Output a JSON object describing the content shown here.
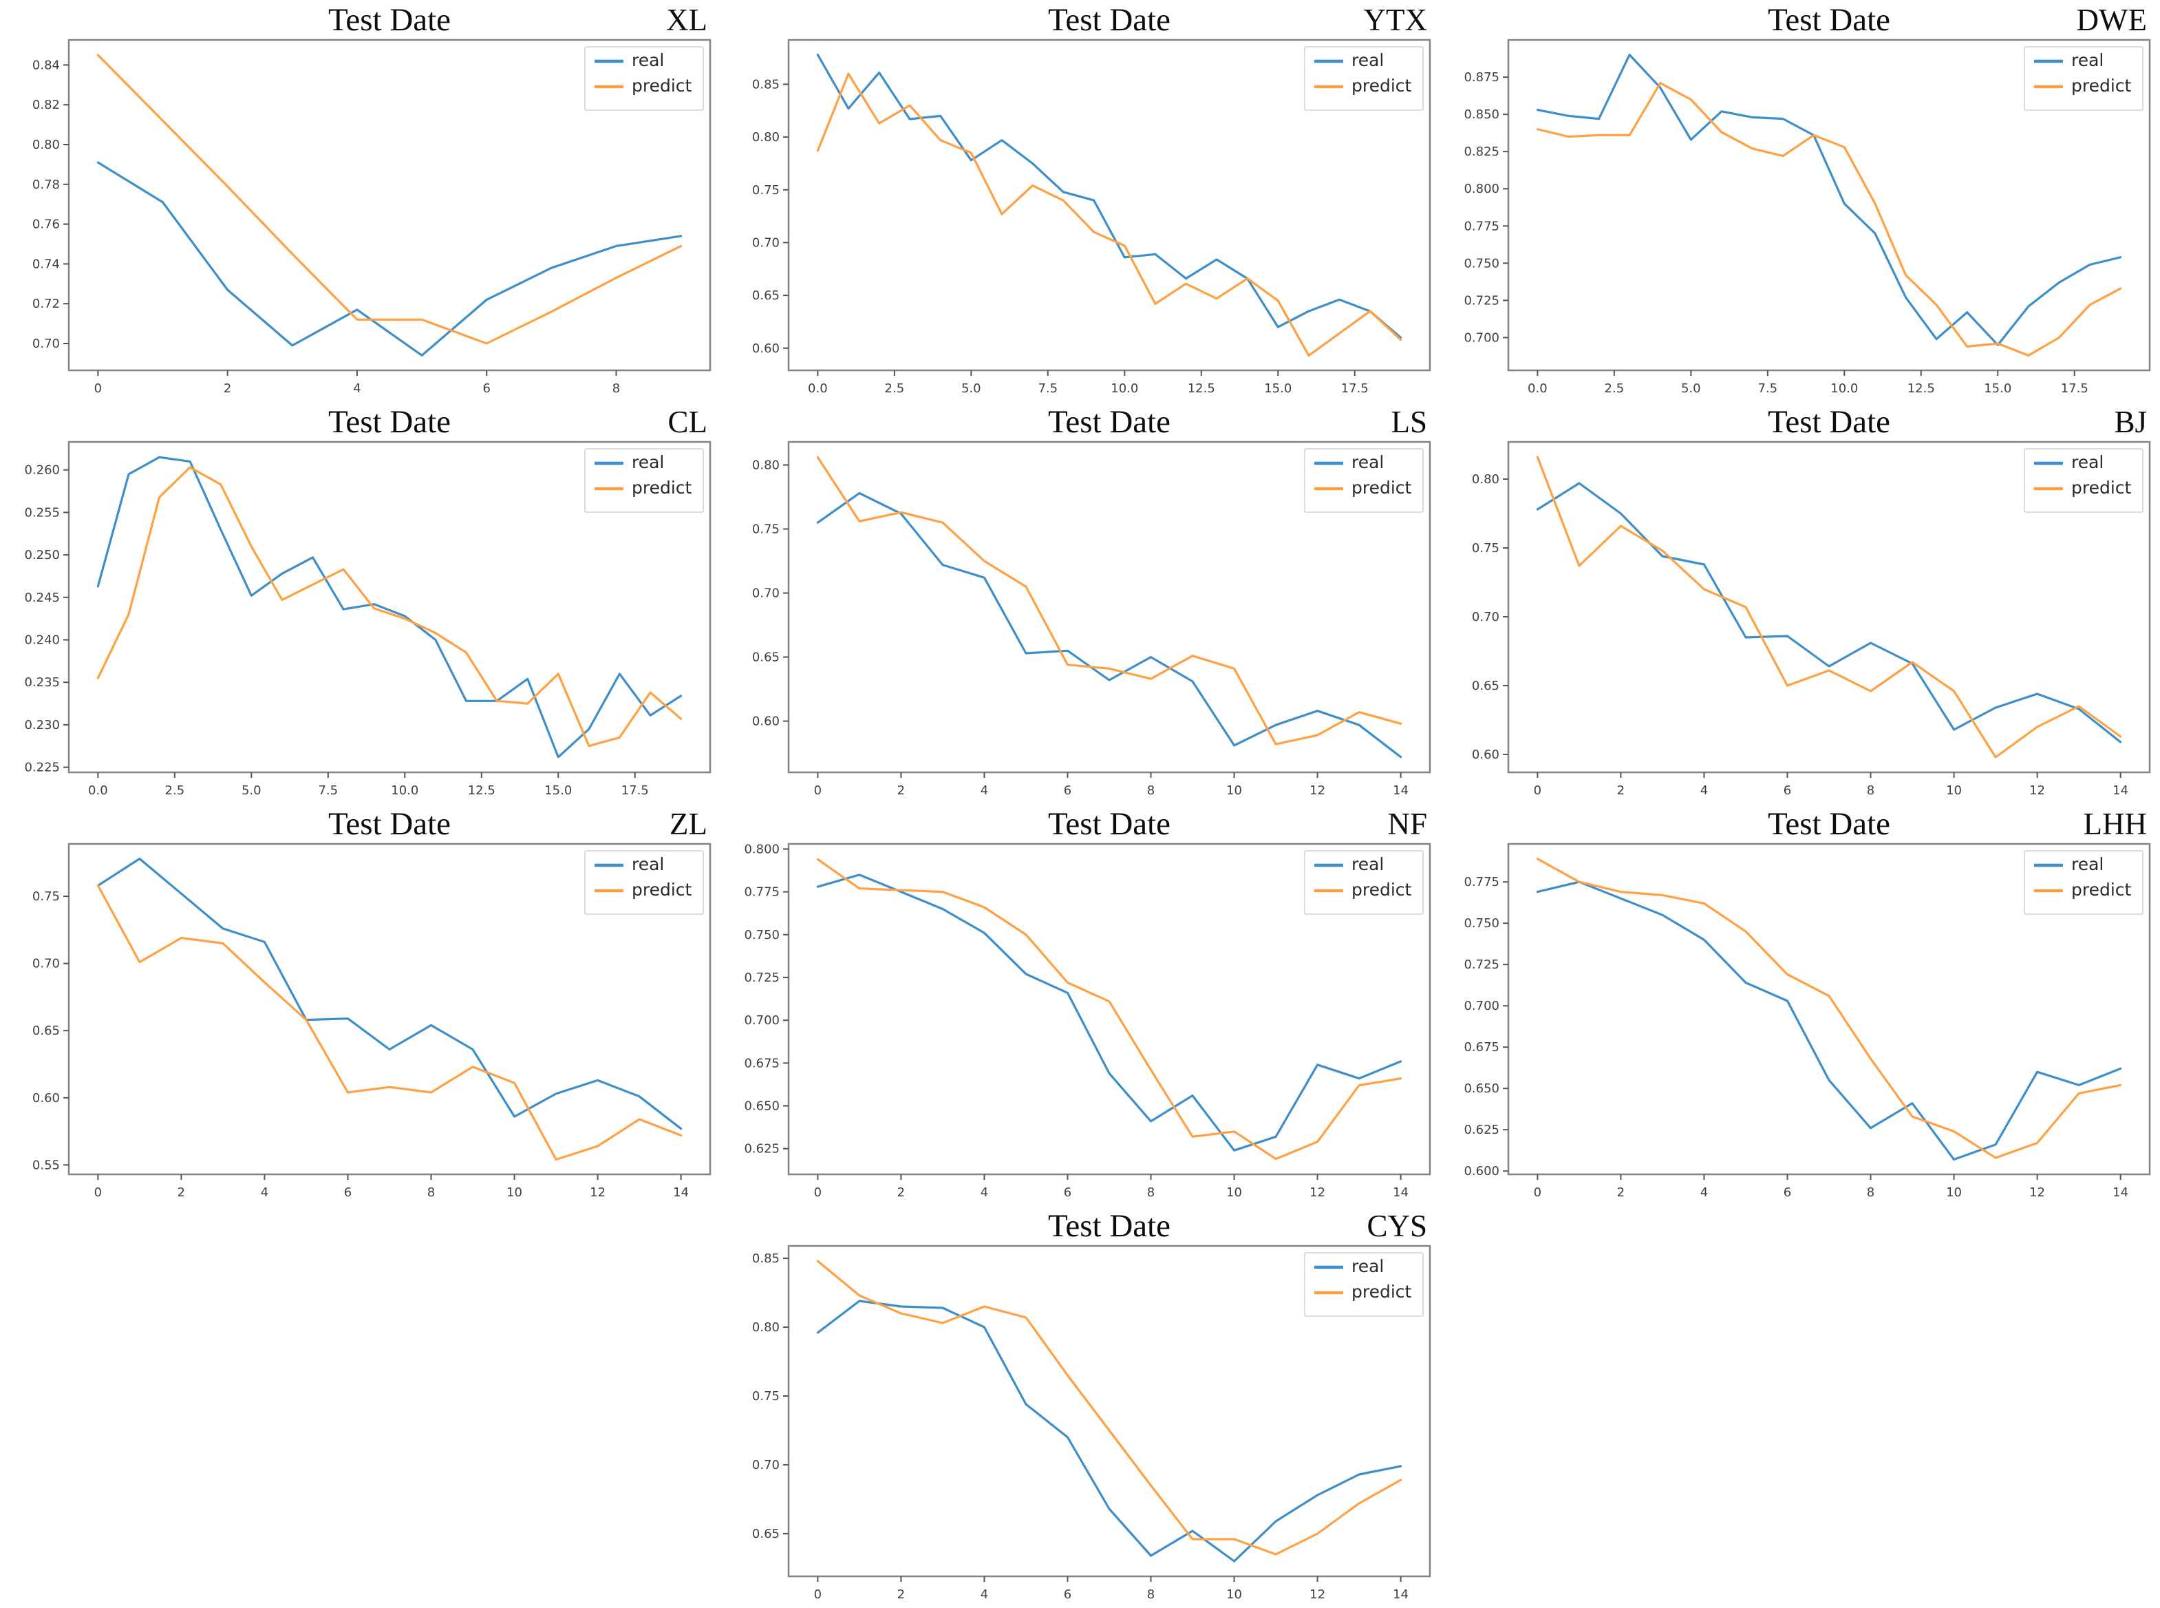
{
  "page": {
    "background": "#ffffff"
  },
  "legend": {
    "position": "top-right",
    "real_label": "real",
    "predict_label": "predict"
  },
  "colors": {
    "real_line": "#3d8ec9",
    "predict_line": "#ffa143",
    "spine": "#85847c",
    "tick": "#555555",
    "tick_label": "#3f3f3f",
    "title": "#0d0d0d",
    "legend_border": "#d2d2d2",
    "legend_bg": "#ffffff"
  },
  "chart_data": [
    {
      "type": "line",
      "title": "Test Date",
      "code": "XL",
      "x": [
        0,
        1,
        2,
        3,
        4,
        5,
        6,
        7,
        8,
        9
      ],
      "x_ticks": [
        "0",
        "2",
        "4",
        "6",
        "8"
      ],
      "y_ticks": [
        "0.70",
        "0.72",
        "0.74",
        "0.76",
        "0.78",
        "0.80",
        "0.82",
        "0.84"
      ],
      "ylim": [
        0.6865,
        0.8526
      ],
      "grid": false,
      "series": [
        {
          "name": "real",
          "values": [
            0.791,
            0.771,
            0.727,
            0.699,
            0.717,
            0.694,
            0.722,
            0.738,
            0.749,
            0.754
          ]
        },
        {
          "name": "predict",
          "values": [
            0.845,
            0.812,
            0.779,
            0.745,
            0.712,
            0.712,
            0.7,
            0.716,
            0.733,
            0.749
          ]
        }
      ]
    },
    {
      "type": "line",
      "title": "Test Date",
      "code": "YTX",
      "x": [
        0,
        1,
        2,
        3,
        4,
        5,
        6,
        7,
        8,
        9,
        10,
        11,
        12,
        13,
        14,
        15,
        16,
        17,
        18,
        19
      ],
      "x_ticks": [
        "0.0",
        "2.5",
        "5.0",
        "7.5",
        "10.0",
        "12.5",
        "15.0",
        "17.5"
      ],
      "y_ticks": [
        "0.60",
        "0.65",
        "0.70",
        "0.75",
        "0.80",
        "0.85"
      ],
      "ylim": [
        0.579,
        0.892
      ],
      "grid": false,
      "series": [
        {
          "name": "real",
          "values": [
            0.878,
            0.827,
            0.861,
            0.817,
            0.82,
            0.778,
            0.797,
            0.775,
            0.748,
            0.74,
            0.686,
            0.689,
            0.666,
            0.684,
            0.666,
            0.62,
            0.635,
            0.646,
            0.635,
            0.61
          ]
        },
        {
          "name": "predict",
          "values": [
            0.787,
            0.86,
            0.813,
            0.83,
            0.797,
            0.785,
            0.727,
            0.754,
            0.74,
            0.71,
            0.697,
            0.642,
            0.661,
            0.647,
            0.666,
            0.645,
            0.593,
            0.614,
            0.635,
            0.608
          ]
        }
      ]
    },
    {
      "type": "line",
      "title": "Test Date",
      "code": "DWE",
      "x": [
        0,
        1,
        2,
        3,
        4,
        5,
        6,
        7,
        8,
        9,
        10,
        11,
        12,
        13,
        14,
        15,
        16,
        17,
        18,
        19
      ],
      "x_ticks": [
        "0.0",
        "2.5",
        "5.0",
        "7.5",
        "10.0",
        "12.5",
        "15.0",
        "17.5"
      ],
      "y_ticks": [
        "0.700",
        "0.725",
        "0.750",
        "0.775",
        "0.800",
        "0.825",
        "0.850",
        "0.875"
      ],
      "ylim": [
        0.678,
        0.9
      ],
      "grid": false,
      "series": [
        {
          "name": "real",
          "values": [
            0.853,
            0.849,
            0.847,
            0.89,
            0.868,
            0.833,
            0.852,
            0.848,
            0.847,
            0.836,
            0.79,
            0.77,
            0.727,
            0.699,
            0.717,
            0.695,
            0.721,
            0.737,
            0.749,
            0.754
          ]
        },
        {
          "name": "predict",
          "values": [
            0.84,
            0.835,
            0.836,
            0.836,
            0.871,
            0.86,
            0.838,
            0.827,
            0.822,
            0.836,
            0.828,
            0.79,
            0.742,
            0.722,
            0.694,
            0.696,
            0.688,
            0.7,
            0.722,
            0.733
          ]
        }
      ]
    },
    {
      "type": "line",
      "title": "Test Date",
      "code": "CL",
      "x": [
        0,
        1,
        2,
        3,
        4,
        5,
        6,
        7,
        8,
        9,
        10,
        11,
        12,
        13,
        14,
        15,
        16,
        17,
        18,
        19
      ],
      "x_ticks": [
        "0.0",
        "2.5",
        "5.0",
        "7.5",
        "10.0",
        "12.5",
        "15.0",
        "17.5"
      ],
      "y_ticks": [
        "0.225",
        "0.230",
        "0.235",
        "0.240",
        "0.245",
        "0.250",
        "0.255",
        "0.260"
      ],
      "ylim": [
        0.2244,
        0.2633
      ],
      "grid": false,
      "series": [
        {
          "name": "real",
          "values": [
            0.2463,
            0.2595,
            0.2615,
            0.261,
            0.253,
            0.2452,
            0.2478,
            0.2497,
            0.2436,
            0.2442,
            0.2428,
            0.24,
            0.2328,
            0.2328,
            0.2354,
            0.2262,
            0.2295,
            0.236,
            0.2311,
            0.2334
          ]
        },
        {
          "name": "predict",
          "values": [
            0.2355,
            0.243,
            0.2568,
            0.2603,
            0.2583,
            0.251,
            0.2447,
            0.2465,
            0.2483,
            0.2437,
            0.2425,
            0.2408,
            0.2385,
            0.2328,
            0.2325,
            0.236,
            0.2275,
            0.2285,
            0.2338,
            0.2307
          ]
        }
      ]
    },
    {
      "type": "line",
      "title": "Test Date",
      "code": "LS",
      "x": [
        0,
        1,
        2,
        3,
        4,
        5,
        6,
        7,
        8,
        9,
        10,
        11,
        12,
        13,
        14
      ],
      "x_ticks": [
        "0",
        "2",
        "4",
        "6",
        "8",
        "10",
        "12",
        "14"
      ],
      "y_ticks": [
        "0.60",
        "0.65",
        "0.70",
        "0.75",
        "0.80"
      ],
      "ylim": [
        0.56,
        0.818
      ],
      "grid": false,
      "series": [
        {
          "name": "real",
          "values": [
            0.755,
            0.778,
            0.762,
            0.722,
            0.712,
            0.653,
            0.655,
            0.632,
            0.65,
            0.631,
            0.581,
            0.597,
            0.608,
            0.597,
            0.572
          ]
        },
        {
          "name": "predict",
          "values": [
            0.806,
            0.756,
            0.763,
            0.755,
            0.725,
            0.705,
            0.644,
            0.641,
            0.633,
            0.651,
            0.641,
            0.582,
            0.589,
            0.607,
            0.598
          ]
        }
      ]
    },
    {
      "type": "line",
      "title": "Test Date",
      "code": "BJ",
      "x": [
        0,
        1,
        2,
        3,
        4,
        5,
        6,
        7,
        8,
        9,
        10,
        11,
        12,
        13,
        14
      ],
      "x_ticks": [
        "0",
        "2",
        "4",
        "6",
        "8",
        "10",
        "12",
        "14"
      ],
      "y_ticks": [
        "0.60",
        "0.65",
        "0.70",
        "0.75",
        "0.80"
      ],
      "ylim": [
        0.587,
        0.827
      ],
      "grid": false,
      "series": [
        {
          "name": "real",
          "values": [
            0.778,
            0.797,
            0.775,
            0.744,
            0.738,
            0.685,
            0.686,
            0.664,
            0.681,
            0.666,
            0.618,
            0.634,
            0.644,
            0.633,
            0.609
          ]
        },
        {
          "name": "predict",
          "values": [
            0.816,
            0.737,
            0.766,
            0.748,
            0.72,
            0.707,
            0.65,
            0.661,
            0.646,
            0.667,
            0.646,
            0.598,
            0.62,
            0.635,
            0.613
          ]
        }
      ]
    },
    {
      "type": "line",
      "title": "Test Date",
      "code": "ZL",
      "x": [
        0,
        1,
        2,
        3,
        4,
        5,
        6,
        7,
        8,
        9,
        10,
        11,
        12,
        13,
        14
      ],
      "x_ticks": [
        "0",
        "2",
        "4",
        "6",
        "8",
        "10",
        "12",
        "14"
      ],
      "y_ticks": [
        "0.55",
        "0.60",
        "0.65",
        "0.70",
        "0.75"
      ],
      "ylim": [
        0.543,
        0.789
      ],
      "grid": false,
      "series": [
        {
          "name": "real",
          "values": [
            0.758,
            0.778,
            0.752,
            0.726,
            0.716,
            0.658,
            0.659,
            0.636,
            0.654,
            0.636,
            0.586,
            0.603,
            0.613,
            0.601,
            0.577
          ]
        },
        {
          "name": "predict",
          "values": [
            0.758,
            0.701,
            0.719,
            0.715,
            0.686,
            0.658,
            0.604,
            0.608,
            0.604,
            0.623,
            0.611,
            0.554,
            0.564,
            0.584,
            0.572
          ]
        }
      ]
    },
    {
      "type": "line",
      "title": "Test Date",
      "code": "NF",
      "x": [
        0,
        1,
        2,
        3,
        4,
        5,
        6,
        7,
        8,
        9,
        10,
        11,
        12,
        13,
        14
      ],
      "x_ticks": [
        "0",
        "2",
        "4",
        "6",
        "8",
        "10",
        "12",
        "14"
      ],
      "y_ticks": [
        "0.625",
        "0.650",
        "0.675",
        "0.700",
        "0.725",
        "0.750",
        "0.775",
        "0.800"
      ],
      "ylim": [
        0.61,
        0.803
      ],
      "grid": false,
      "series": [
        {
          "name": "real",
          "values": [
            0.778,
            0.785,
            0.775,
            0.765,
            0.751,
            0.727,
            0.716,
            0.669,
            0.641,
            0.656,
            0.624,
            0.632,
            0.674,
            0.666,
            0.676
          ]
        },
        {
          "name": "predict",
          "values": [
            0.794,
            0.777,
            0.776,
            0.775,
            0.766,
            0.75,
            0.722,
            0.711,
            0.671,
            0.632,
            0.635,
            0.619,
            0.629,
            0.662,
            0.666
          ]
        }
      ]
    },
    {
      "type": "line",
      "title": "Test Date",
      "code": "LHH",
      "x": [
        0,
        1,
        2,
        3,
        4,
        5,
        6,
        7,
        8,
        9,
        10,
        11,
        12,
        13,
        14
      ],
      "x_ticks": [
        "0",
        "2",
        "4",
        "6",
        "8",
        "10",
        "12",
        "14"
      ],
      "y_ticks": [
        "0.600",
        "0.625",
        "0.650",
        "0.675",
        "0.700",
        "0.725",
        "0.750",
        "0.775"
      ],
      "ylim": [
        0.598,
        0.798
      ],
      "grid": false,
      "series": [
        {
          "name": "real",
          "values": [
            0.769,
            0.775,
            0.765,
            0.755,
            0.74,
            0.714,
            0.703,
            0.655,
            0.626,
            0.641,
            0.607,
            0.616,
            0.66,
            0.652,
            0.662
          ]
        },
        {
          "name": "predict",
          "values": [
            0.789,
            0.775,
            0.769,
            0.767,
            0.762,
            0.745,
            0.719,
            0.706,
            0.668,
            0.633,
            0.624,
            0.608,
            0.617,
            0.647,
            0.652
          ]
        }
      ]
    },
    {
      "type": "line",
      "title": "Test Date",
      "code": "CYS",
      "x": [
        0,
        1,
        2,
        3,
        4,
        5,
        6,
        7,
        8,
        9,
        10,
        11,
        12,
        13,
        14
      ],
      "x_ticks": [
        "0",
        "2",
        "4",
        "6",
        "8",
        "10",
        "12",
        "14"
      ],
      "y_ticks": [
        "0.65",
        "0.70",
        "0.75",
        "0.80",
        "0.85"
      ],
      "ylim": [
        0.619,
        0.859
      ],
      "grid": false,
      "series": [
        {
          "name": "real",
          "values": [
            0.796,
            0.819,
            0.815,
            0.814,
            0.8,
            0.744,
            0.72,
            0.668,
            0.634,
            0.652,
            0.63,
            0.659,
            0.678,
            0.693,
            0.699
          ]
        },
        {
          "name": "predict",
          "values": [
            0.848,
            0.823,
            0.81,
            0.803,
            0.815,
            0.807,
            0.765,
            0.725,
            0.685,
            0.646,
            0.646,
            0.635,
            0.65,
            0.672,
            0.689
          ]
        }
      ]
    }
  ]
}
